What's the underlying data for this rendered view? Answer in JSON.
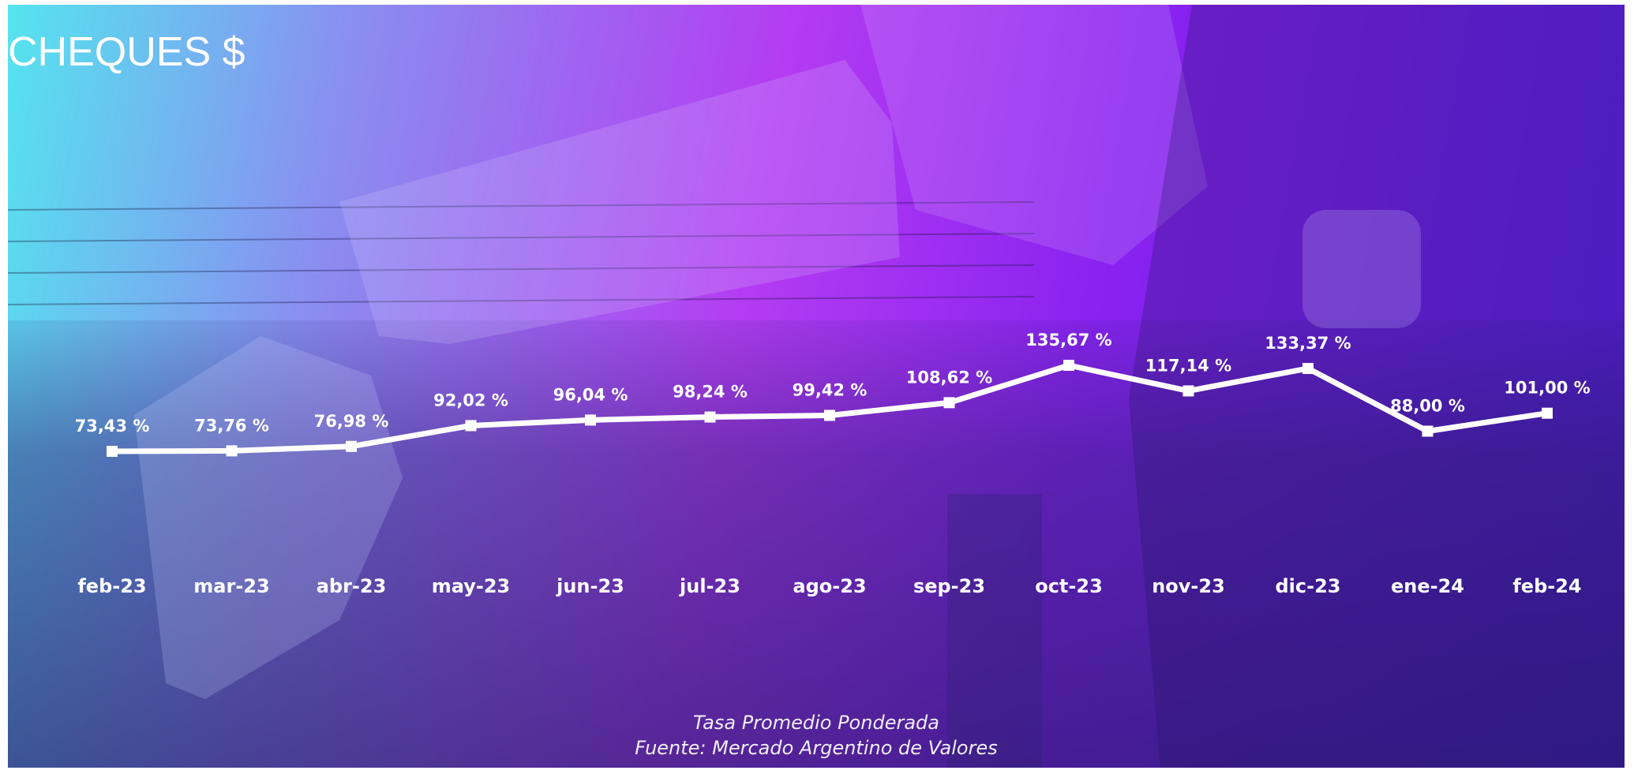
{
  "title": "CHEQUES $",
  "footnote": {
    "line1": "Tasa Promedio Ponderada",
    "line2": "Fuente: Mercado Argentino de Valores"
  },
  "colors": {
    "gradient_start": "#55e4ef",
    "gradient_mid": "#b43cf2",
    "gradient_end": "#5a1fe6",
    "line": "#ffffff"
  },
  "chart_data": {
    "type": "line",
    "title": "CHEQUES $",
    "categories": [
      "feb-23",
      "mar-23",
      "abr-23",
      "may-23",
      "jun-23",
      "jul-23",
      "ago-23",
      "sep-23",
      "oct-23",
      "nov-23",
      "dic-23",
      "ene-24",
      "feb-24"
    ],
    "series": [
      {
        "values": [
          73.43,
          73.76,
          76.98,
          92.02,
          96.04,
          98.24,
          99.42,
          108.62,
          135.67,
          117.14,
          133.37,
          88.0,
          101.0
        ],
        "labels": [
          "73,43 %",
          "73,76 %",
          "76,98 %",
          "92,02 %",
          "96,04 %",
          "98,24 %",
          "99,42 %",
          "108,62 %",
          "135,67 %",
          "117,14 %",
          "133,37 %",
          "88,00 %",
          "101,00 %"
        ]
      }
    ],
    "marker": "square",
    "grid": false,
    "legend": false
  }
}
